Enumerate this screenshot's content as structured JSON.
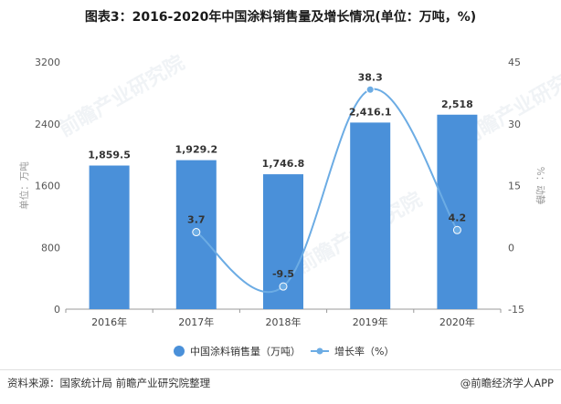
{
  "title": "图表3：2016-2020年中国涂料销售量及增长情况(单位：万吨，%)",
  "footer": {
    "source": "资料来源：国家统计局 前瞻产业研究院整理",
    "brand": "@前瞻经济学人APP"
  },
  "watermark": "前瞻产业研究院",
  "colors": {
    "bar": "#4a90d9",
    "line": "#6cace4",
    "grid": "#e6e6e6"
  },
  "chart_data": {
    "type": "bar",
    "categories": [
      "2016年",
      "2017年",
      "2018年",
      "2019年",
      "2020年"
    ],
    "series": [
      {
        "name": "中国涂料销售量（万吨）",
        "type": "bar",
        "axis": "left",
        "values": [
          1859.5,
          1929.2,
          1746.8,
          2416.1,
          2518
        ],
        "labels": [
          "1,859.5",
          "1,929.2",
          "1,746.8",
          "2,416.1",
          "2,518"
        ]
      },
      {
        "name": "增长率（%）",
        "type": "line",
        "axis": "right",
        "values": [
          null,
          3.7,
          -9.5,
          38.3,
          4.2
        ],
        "labels": [
          "",
          "3.7",
          "-9.5",
          "38.3",
          "4.2"
        ]
      }
    ],
    "ylabel": "单位：万吨",
    "y2label": "%：动静",
    "ylim": [
      0,
      3200
    ],
    "yticks": [
      0,
      800,
      1600,
      2400,
      3200
    ],
    "y2lim": [
      -15,
      45
    ],
    "y2ticks": [
      -15,
      0,
      15,
      30,
      45
    ],
    "legend": "bottom",
    "grid": false
  }
}
